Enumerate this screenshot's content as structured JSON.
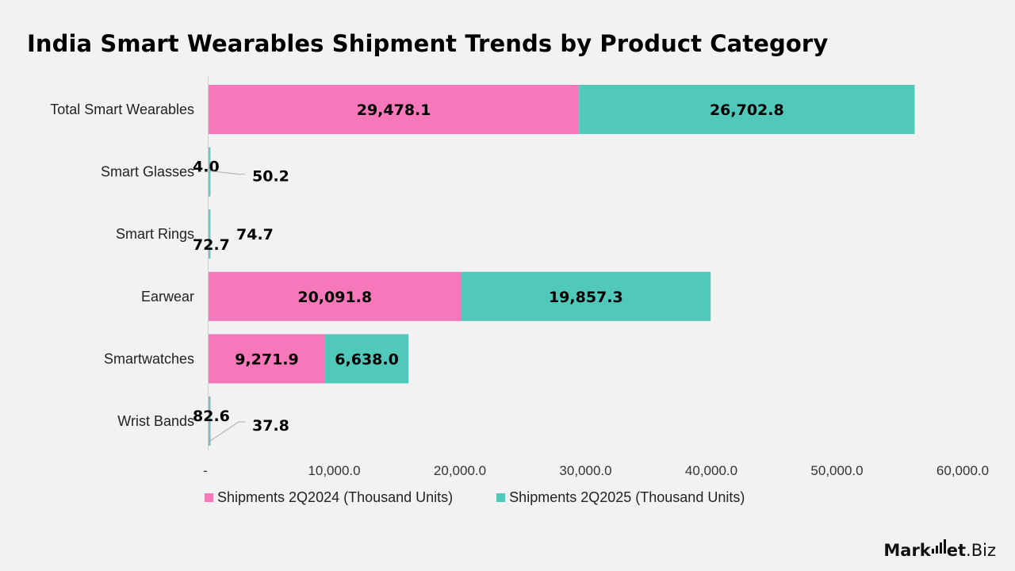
{
  "title": "India Smart Wearables Shipment Trends by Product Category",
  "brand": {
    "logo_part1": "Mark",
    "logo_part2": "et",
    "logo_part3": ".Biz"
  },
  "colors": {
    "background": "#f2f2f2",
    "series_2024": "#f678ba",
    "series_2025": "#50c8ba",
    "axis": "#d0d0d0",
    "text": "#000000"
  },
  "chart_data": {
    "type": "bar",
    "orientation": "horizontal",
    "stacked": true,
    "categories": [
      "Total Smart Wearables",
      "Smart Glasses",
      "Smart Rings",
      "Earwear",
      "Smartwatches",
      "Wrist Bands"
    ],
    "series": [
      {
        "name": "Shipments 2Q2024 (Thousand Units)",
        "values": [
          29478.1,
          4.0,
          72.7,
          20091.8,
          9271.9,
          82.6
        ],
        "labels": [
          "29,478.1",
          "4.0",
          "72.7",
          "20,091.8",
          "9,271.9",
          "82.6"
        ],
        "color": "#f678ba"
      },
      {
        "name": "Shipments 2Q2025 (Thousand Units)",
        "values": [
          26702.8,
          50.2,
          74.7,
          19857.3,
          6638.0,
          37.8
        ],
        "labels": [
          "26,702.8",
          "50.2",
          "74.7",
          "19,857.3",
          "6,638.0",
          "37.8"
        ],
        "color": "#50c8ba"
      }
    ],
    "xlim": [
      0,
      60000
    ],
    "x_ticks": [
      0,
      10000,
      20000,
      30000,
      40000,
      50000,
      60000
    ],
    "x_tick_labels": [
      "-",
      "10,000.0",
      "20,000.0",
      "30,000.0",
      "40,000.0",
      "50,000.0",
      "60,000.0"
    ],
    "grid": false,
    "legend_position": "bottom",
    "title": "India Smart Wearables Shipment Trends by Product Category",
    "xlabel": "",
    "ylabel": ""
  }
}
